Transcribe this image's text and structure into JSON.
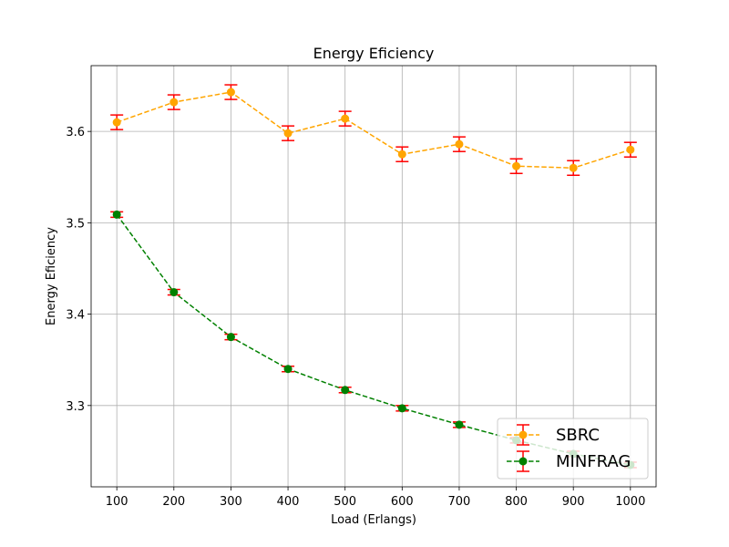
{
  "chart_data": {
    "type": "line",
    "title": "Energy Eficiency",
    "xlabel": "Load (Erlangs)",
    "ylabel": "Energy Eficiency",
    "x": [
      100,
      200,
      300,
      400,
      500,
      600,
      700,
      800,
      900,
      1000
    ],
    "x_ticks": [
      "100",
      "200",
      "300",
      "400",
      "500",
      "600",
      "700",
      "800",
      "900",
      "1000"
    ],
    "y_ticks": [
      3.3,
      3.4,
      3.5,
      3.6
    ],
    "y_tick_labels": [
      "3.3",
      "3.4",
      "3.5",
      "3.6"
    ],
    "xlim": [
      55,
      1045
    ],
    "ylim": [
      3.211,
      3.672
    ],
    "grid": true,
    "legend_position": "lower-right",
    "errorbar_color": "#ff0000",
    "series": [
      {
        "name": "SBRC",
        "color": "#ffa500",
        "linestyle": "dashed",
        "marker": "circle",
        "values": [
          3.61,
          3.632,
          3.643,
          3.598,
          3.614,
          3.575,
          3.586,
          3.562,
          3.56,
          3.58
        ],
        "errors": [
          0.008,
          0.008,
          0.008,
          0.008,
          0.008,
          0.008,
          0.008,
          0.008,
          0.008,
          0.008
        ]
      },
      {
        "name": "MINFRAG",
        "color": "#008000",
        "linestyle": "dashed",
        "marker": "circle",
        "values": [
          3.509,
          3.424,
          3.375,
          3.34,
          3.317,
          3.297,
          3.279,
          3.262,
          3.247,
          3.235
        ],
        "errors": [
          0.003,
          0.003,
          0.003,
          0.003,
          0.003,
          0.003,
          0.003,
          0.003,
          0.003,
          0.003
        ]
      }
    ]
  }
}
